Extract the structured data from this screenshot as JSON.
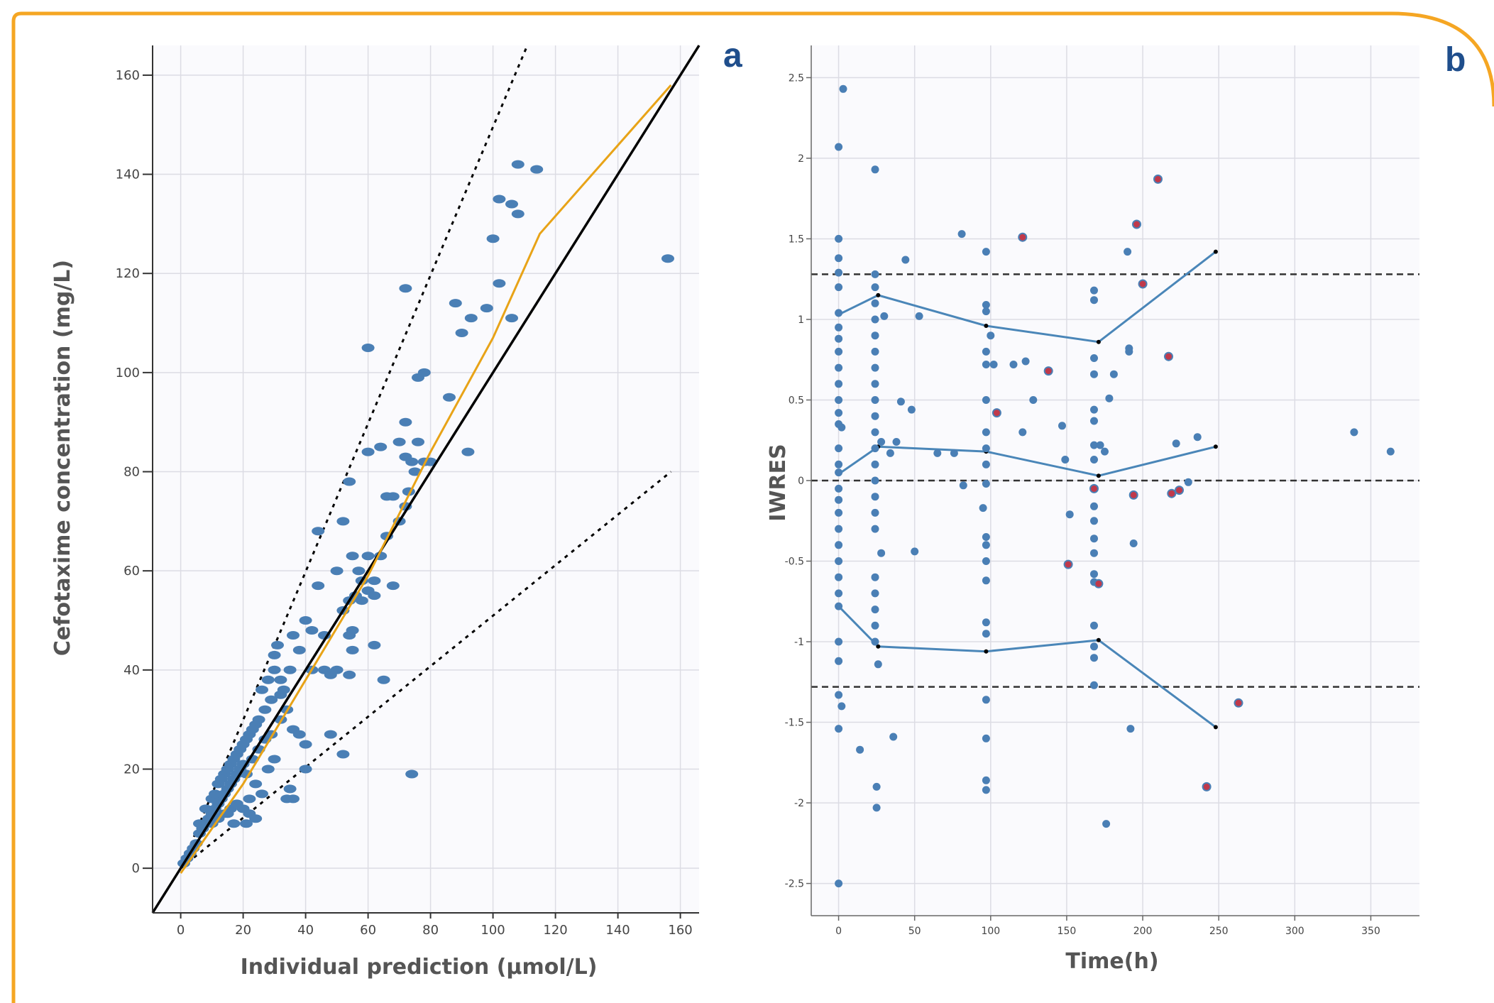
{
  "colors": {
    "frame": "#F5A623",
    "point": "#4A7FB5",
    "point_outlier": "#C0394B",
    "loess": "#E8A317",
    "percentile_line": "#4A86B8",
    "panel_letter": "#1F4E8C",
    "axis_title": "#555555",
    "plot_bg": "#FAFAFD",
    "grid": "#DCDCE4"
  },
  "chart_data": [
    {
      "panel_label": "a",
      "type": "scatter",
      "xlabel": "Individual prediction (μmol/L)",
      "ylabel": "Cefotaxime concentration (mg/L)",
      "xlim": [
        -9,
        166
      ],
      "ylim": [
        -9,
        166
      ],
      "xticks": [
        0,
        20,
        40,
        60,
        80,
        100,
        120,
        140,
        160
      ],
      "yticks": [
        0,
        20,
        40,
        60,
        80,
        100,
        120,
        140,
        160
      ],
      "grid": true,
      "reference_lines": {
        "identity": [
          [
            -9,
            -9
          ],
          [
            166,
            166
          ]
        ],
        "upper_bound": [
          [
            0,
            0
          ],
          [
            111,
            166
          ]
        ],
        "lower_bound": [
          [
            0,
            0
          ],
          [
            157,
            80
          ]
        ]
      },
      "loess_trend": [
        [
          0,
          -1
        ],
        [
          20,
          17
        ],
        [
          40,
          38
        ],
        [
          60,
          59
        ],
        [
          80,
          84
        ],
        [
          100,
          107
        ],
        [
          115,
          128
        ],
        [
          157,
          158
        ]
      ],
      "points": [
        [
          1,
          1
        ],
        [
          2,
          2
        ],
        [
          3,
          3
        ],
        [
          4,
          4
        ],
        [
          5,
          5
        ],
        [
          6,
          7
        ],
        [
          7,
          8
        ],
        [
          8,
          9
        ],
        [
          9,
          10
        ],
        [
          10,
          11
        ],
        [
          11,
          12
        ],
        [
          12,
          13
        ],
        [
          13,
          14
        ],
        [
          14,
          15
        ],
        [
          15,
          16
        ],
        [
          16,
          17
        ],
        [
          17,
          18
        ],
        [
          18,
          19
        ],
        [
          19,
          20
        ],
        [
          20,
          21
        ],
        [
          6,
          9
        ],
        [
          8,
          12
        ],
        [
          10,
          14
        ],
        [
          12,
          17
        ],
        [
          14,
          19
        ],
        [
          16,
          21
        ],
        [
          18,
          23
        ],
        [
          20,
          25
        ],
        [
          22,
          27
        ],
        [
          24,
          29
        ],
        [
          10,
          9
        ],
        [
          12,
          10
        ],
        [
          14,
          11
        ],
        [
          16,
          12
        ],
        [
          18,
          13
        ],
        [
          20,
          12
        ],
        [
          22,
          11
        ],
        [
          21,
          9
        ],
        [
          17,
          9
        ],
        [
          15,
          11
        ],
        [
          11,
          15
        ],
        [
          13,
          18
        ],
        [
          15,
          20
        ],
        [
          17,
          22
        ],
        [
          19,
          24
        ],
        [
          21,
          26
        ],
        [
          23,
          28
        ],
        [
          25,
          30
        ],
        [
          27,
          32
        ],
        [
          29,
          34
        ],
        [
          30,
          43
        ],
        [
          31,
          45
        ],
        [
          32,
          38
        ],
        [
          33,
          36
        ],
        [
          35,
          40
        ],
        [
          36,
          47
        ],
        [
          38,
          44
        ],
        [
          40,
          50
        ],
        [
          42,
          48
        ],
        [
          44,
          57
        ],
        [
          26,
          36
        ],
        [
          28,
          38
        ],
        [
          30,
          40
        ],
        [
          32,
          35
        ],
        [
          34,
          32
        ],
        [
          36,
          28
        ],
        [
          38,
          27
        ],
        [
          40,
          25
        ],
        [
          30,
          22
        ],
        [
          28,
          20
        ],
        [
          35,
          16
        ],
        [
          36,
          14
        ],
        [
          34,
          14
        ],
        [
          40,
          20
        ],
        [
          52,
          23
        ],
        [
          48,
          27
        ],
        [
          42,
          40
        ],
        [
          46,
          40
        ],
        [
          48,
          39
        ],
        [
          50,
          40
        ],
        [
          54,
          39
        ],
        [
          55,
          44
        ],
        [
          55,
          48
        ],
        [
          54,
          47
        ],
        [
          52,
          52
        ],
        [
          54,
          54
        ],
        [
          56,
          55
        ],
        [
          58,
          54
        ],
        [
          60,
          56
        ],
        [
          62,
          55
        ],
        [
          58,
          58
        ],
        [
          62,
          58
        ],
        [
          64,
          63
        ],
        [
          66,
          67
        ],
        [
          70,
          70
        ],
        [
          72,
          73
        ],
        [
          73,
          76
        ],
        [
          74,
          82
        ],
        [
          75,
          80
        ],
        [
          72,
          83
        ],
        [
          70,
          86
        ],
        [
          64,
          85
        ],
        [
          60,
          84
        ],
        [
          62,
          45
        ],
        [
          65,
          38
        ],
        [
          68,
          57
        ],
        [
          66,
          75
        ],
        [
          68,
          75
        ],
        [
          76,
          86
        ],
        [
          78,
          82
        ],
        [
          44,
          68
        ],
        [
          52,
          70
        ],
        [
          54,
          78
        ],
        [
          60,
          105
        ],
        [
          72,
          117
        ],
        [
          76,
          99
        ],
        [
          78,
          100
        ],
        [
          86,
          95
        ],
        [
          90,
          108
        ],
        [
          88,
          114
        ],
        [
          93,
          111
        ],
        [
          98,
          113
        ],
        [
          100,
          127
        ],
        [
          102,
          118
        ],
        [
          106,
          111
        ],
        [
          102,
          135
        ],
        [
          106,
          134
        ],
        [
          108,
          132
        ],
        [
          108,
          142
        ],
        [
          114,
          141
        ],
        [
          92,
          84
        ],
        [
          156,
          123
        ],
        [
          74,
          19
        ],
        [
          80,
          82
        ],
        [
          72,
          90
        ],
        [
          60,
          63
        ],
        [
          55,
          63
        ],
        [
          57,
          60
        ],
        [
          50,
          60
        ],
        [
          46,
          47
        ],
        [
          24,
          17
        ],
        [
          22,
          14
        ],
        [
          26,
          15
        ],
        [
          24,
          10
        ],
        [
          21,
          19
        ],
        [
          23,
          22
        ],
        [
          25,
          24
        ],
        [
          27,
          26
        ],
        [
          29,
          27
        ],
        [
          32,
          30
        ]
      ]
    },
    {
      "panel_label": "b",
      "type": "scatter",
      "xlabel": "Time(h)",
      "ylabel": "IWRES",
      "xlim": [
        -18,
        382
      ],
      "ylim": [
        -2.7,
        2.7
      ],
      "xticks": [
        0,
        50,
        100,
        150,
        200,
        250,
        300,
        350
      ],
      "yticks": [
        -2.5,
        -2,
        -1.5,
        -1,
        -0.5,
        0,
        0.5,
        1,
        1.5,
        2,
        2.5
      ],
      "ytick_labels": [
        "-2.5",
        "-2",
        "-1.5",
        "-1",
        "-0.5",
        "0",
        "0.5",
        "1",
        "1.5",
        "2",
        "2.5"
      ],
      "grid": true,
      "reference_lines_y": [
        1.28,
        0,
        -1.28
      ],
      "percentile_lines": [
        {
          "x": [
            0,
            26,
            97,
            171,
            248
          ],
          "y": [
            1.03,
            1.15,
            0.96,
            0.86,
            1.42
          ]
        },
        {
          "x": [
            0,
            26,
            97,
            171,
            248
          ],
          "y": [
            0.04,
            0.21,
            0.18,
            0.03,
            0.21
          ]
        },
        {
          "x": [
            0,
            26,
            97,
            171,
            248
          ],
          "y": [
            -0.78,
            -1.03,
            -1.06,
            -0.99,
            -1.53
          ]
        }
      ],
      "points": [
        [
          0,
          2.07
        ],
        [
          3,
          2.43
        ],
        [
          0,
          1.5
        ],
        [
          0,
          1.38
        ],
        [
          0,
          1.29
        ],
        [
          0,
          1.2
        ],
        [
          0,
          1.04
        ],
        [
          0,
          0.95
        ],
        [
          0,
          0.88
        ],
        [
          0,
          0.8
        ],
        [
          0,
          0.7
        ],
        [
          0,
          0.6
        ],
        [
          0,
          0.5
        ],
        [
          0,
          0.42
        ],
        [
          0,
          0.35
        ],
        [
          0,
          0.2
        ],
        [
          0,
          0.1
        ],
        [
          0,
          0.05
        ],
        [
          0,
          -0.05
        ],
        [
          0,
          -0.12
        ],
        [
          0,
          -0.2
        ],
        [
          0,
          -0.3
        ],
        [
          0,
          -0.4
        ],
        [
          0,
          -0.5
        ],
        [
          0,
          -0.6
        ],
        [
          0,
          -0.7
        ],
        [
          0,
          -0.78
        ],
        [
          0,
          -1.0
        ],
        [
          0,
          -1.12
        ],
        [
          0,
          -1.33
        ],
        [
          0,
          -1.54
        ],
        [
          0,
          -2.5
        ],
        [
          2,
          0.33
        ],
        [
          2,
          -1.4
        ],
        [
          14,
          -1.67
        ],
        [
          36,
          -1.59
        ],
        [
          24,
          1.93
        ],
        [
          24,
          1.28
        ],
        [
          24,
          1.2
        ],
        [
          24,
          1.1
        ],
        [
          24,
          1.0
        ],
        [
          24,
          0.9
        ],
        [
          24,
          0.8
        ],
        [
          24,
          0.7
        ],
        [
          24,
          0.6
        ],
        [
          24,
          0.5
        ],
        [
          24,
          0.4
        ],
        [
          24,
          0.3
        ],
        [
          24,
          0.2
        ],
        [
          24,
          0.1
        ],
        [
          24,
          0.0
        ],
        [
          24,
          -0.1
        ],
        [
          24,
          -0.2
        ],
        [
          24,
          -0.3
        ],
        [
          24,
          -0.6
        ],
        [
          24,
          -0.7
        ],
        [
          24,
          -0.8
        ],
        [
          24,
          -0.9
        ],
        [
          24,
          -1.0
        ],
        [
          25,
          -1.9
        ],
        [
          25,
          -2.03
        ],
        [
          26,
          -1.14
        ],
        [
          28,
          0.24
        ],
        [
          30,
          1.02
        ],
        [
          28,
          -0.45
        ],
        [
          34,
          0.17
        ],
        [
          38,
          0.24
        ],
        [
          41,
          0.49
        ],
        [
          44,
          1.37
        ],
        [
          48,
          0.44
        ],
        [
          50,
          -0.44
        ],
        [
          53,
          1.02
        ],
        [
          65,
          0.17
        ],
        [
          76,
          0.17
        ],
        [
          81,
          1.53
        ],
        [
          82,
          -0.03
        ],
        [
          97,
          1.42
        ],
        [
          97,
          1.09
        ],
        [
          97,
          1.05
        ],
        [
          97,
          0.8
        ],
        [
          97,
          0.72
        ],
        [
          97,
          0.5
        ],
        [
          97,
          0.3
        ],
        [
          97,
          0.2
        ],
        [
          97,
          0.1
        ],
        [
          97,
          -0.02
        ],
        [
          97,
          -0.35
        ],
        [
          97,
          -0.4
        ],
        [
          97,
          -0.5
        ],
        [
          97,
          -0.62
        ],
        [
          97,
          -0.88
        ],
        [
          97,
          -0.95
        ],
        [
          97,
          -1.36
        ],
        [
          97,
          -1.6
        ],
        [
          97,
          -1.86
        ],
        [
          97,
          -1.92
        ],
        [
          95,
          -0.17
        ],
        [
          100,
          0.9
        ],
        [
          102,
          0.72
        ],
        [
          115,
          0.72
        ],
        [
          121,
          0.3
        ],
        [
          123,
          0.74
        ],
        [
          128,
          0.5
        ],
        [
          147,
          0.34
        ],
        [
          152,
          -0.21
        ],
        [
          149,
          0.13
        ],
        [
          168,
          1.18
        ],
        [
          168,
          1.12
        ],
        [
          168,
          0.76
        ],
        [
          168,
          0.66
        ],
        [
          168,
          0.44
        ],
        [
          168,
          0.37
        ],
        [
          168,
          0.22
        ],
        [
          168,
          0.13
        ],
        [
          168,
          -0.16
        ],
        [
          168,
          -0.25
        ],
        [
          168,
          -0.36
        ],
        [
          168,
          -0.45
        ],
        [
          168,
          -0.58
        ],
        [
          168,
          -0.63
        ],
        [
          168,
          -0.9
        ],
        [
          168,
          -1.03
        ],
        [
          168,
          -1.1
        ],
        [
          168,
          -1.27
        ],
        [
          172,
          0.22
        ],
        [
          175,
          0.18
        ],
        [
          176,
          -2.13
        ],
        [
          178,
          0.51
        ],
        [
          181,
          0.66
        ],
        [
          190,
          1.42
        ],
        [
          191,
          0.82
        ],
        [
          191,
          0.8
        ],
        [
          192,
          -1.54
        ],
        [
          194,
          -0.39
        ],
        [
          222,
          0.23
        ],
        [
          230,
          -0.01
        ],
        [
          236,
          0.27
        ],
        [
          339,
          0.3
        ],
        [
          363,
          0.18
        ]
      ],
      "outlier_points": [
        [
          121,
          1.51
        ],
        [
          138,
          0.68
        ],
        [
          104,
          0.42
        ],
        [
          151,
          -0.52
        ],
        [
          171,
          -0.64
        ],
        [
          168,
          -0.05
        ],
        [
          194,
          -0.09
        ],
        [
          196,
          1.59
        ],
        [
          200,
          1.22
        ],
        [
          210,
          1.87
        ],
        [
          217,
          0.77
        ],
        [
          219,
          -0.08
        ],
        [
          224,
          -0.06
        ],
        [
          242,
          -1.9
        ],
        [
          263,
          -1.38
        ]
      ]
    }
  ]
}
